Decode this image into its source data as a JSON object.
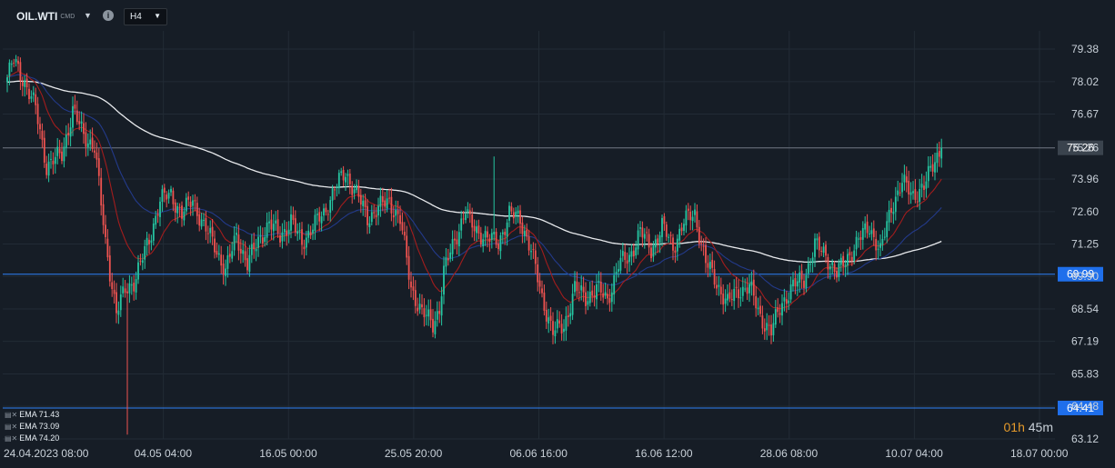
{
  "instrument": {
    "symbol": "OIL.WTI",
    "market": "CMD",
    "info_icon": "info-icon",
    "timeframe": "H4"
  },
  "chart_data": {
    "type": "candlestick",
    "ylim": [
      63.12,
      79.38
    ],
    "y_ticks": [
      "79.38",
      "78.02",
      "76.67",
      "75.26",
      "73.96",
      "72.60",
      "71.25",
      "69.90",
      "68.54",
      "67.19",
      "65.83",
      "64.48",
      "63.12"
    ],
    "x_ticks": [
      "24.04.2023  08:00",
      "04.05  04:00",
      "16.05  00:00",
      "25.05  20:00",
      "06.06  16:00",
      "16.06  12:00",
      "28.06  08:00",
      "10.07  04:00",
      "18.07  00:00"
    ],
    "price_lines": [
      {
        "label": "75.26",
        "value": 75.26,
        "color": "#6e7681",
        "badge": "#3a434d"
      },
      {
        "label": "69.99",
        "value": 69.99,
        "color": "#2f81f7",
        "badge": "#1f6feb"
      },
      {
        "label": "64.41",
        "value": 64.41,
        "color": "#2f81f7",
        "badge": "#1f6feb"
      }
    ],
    "close_anchors": [
      [
        0,
        78.2
      ],
      [
        3,
        78.9
      ],
      [
        8,
        78.0
      ],
      [
        13,
        76.9
      ],
      [
        18,
        74.5
      ],
      [
        25,
        75.0
      ],
      [
        30,
        76.8
      ],
      [
        35,
        75.8
      ],
      [
        40,
        75.3
      ],
      [
        45,
        71.3
      ],
      [
        50,
        68.4
      ],
      [
        54,
        69.3
      ],
      [
        58,
        69.7
      ],
      [
        65,
        71.4
      ],
      [
        70,
        73.1
      ],
      [
        75,
        73.3
      ],
      [
        80,
        72.5
      ],
      [
        85,
        73.1
      ],
      [
        90,
        72.0
      ],
      [
        95,
        71.2
      ],
      [
        100,
        70.1
      ],
      [
        105,
        71.6
      ],
      [
        110,
        70.4
      ],
      [
        115,
        71.4
      ],
      [
        120,
        72.1
      ],
      [
        125,
        71.6
      ],
      [
        130,
        72.2
      ],
      [
        135,
        71.3
      ],
      [
        140,
        72.0
      ],
      [
        145,
        72.5
      ],
      [
        150,
        73.6
      ],
      [
        155,
        74.2
      ],
      [
        160,
        73.4
      ],
      [
        165,
        72.3
      ],
      [
        170,
        72.8
      ],
      [
        175,
        73.0
      ],
      [
        180,
        72.3
      ],
      [
        185,
        69.4
      ],
      [
        190,
        68.4
      ],
      [
        195,
        67.9
      ],
      [
        198,
        68.6
      ],
      [
        200,
        70.1
      ],
      [
        205,
        71.4
      ],
      [
        210,
        72.7
      ],
      [
        212,
        72.1
      ],
      [
        215,
        71.8
      ],
      [
        220,
        71.5
      ],
      [
        225,
        71.3
      ],
      [
        230,
        72.5
      ],
      [
        235,
        72.3
      ],
      [
        240,
        71.0
      ],
      [
        245,
        69.0
      ],
      [
        250,
        67.6
      ],
      [
        255,
        67.8
      ],
      [
        260,
        69.4
      ],
      [
        265,
        69.0
      ],
      [
        270,
        69.4
      ],
      [
        275,
        68.9
      ],
      [
        280,
        70.4
      ],
      [
        285,
        70.7
      ],
      [
        290,
        71.8
      ],
      [
        295,
        71.0
      ],
      [
        300,
        72.0
      ],
      [
        305,
        71.1
      ],
      [
        310,
        72.2
      ],
      [
        315,
        72.5
      ],
      [
        320,
        70.5
      ],
      [
        325,
        69.6
      ],
      [
        330,
        68.8
      ],
      [
        335,
        69.3
      ],
      [
        340,
        69.5
      ],
      [
        345,
        68.2
      ],
      [
        350,
        67.6
      ],
      [
        355,
        68.8
      ],
      [
        360,
        69.5
      ],
      [
        365,
        69.8
      ],
      [
        370,
        71.2
      ],
      [
        375,
        70.8
      ],
      [
        380,
        70.0
      ],
      [
        385,
        70.7
      ],
      [
        390,
        71.4
      ],
      [
        395,
        72.0
      ],
      [
        400,
        70.9
      ],
      [
        405,
        72.8
      ],
      [
        410,
        73.8
      ],
      [
        415,
        73.3
      ],
      [
        420,
        73.6
      ],
      [
        425,
        74.8
      ],
      [
        428,
        75.26
      ]
    ],
    "series": [
      {
        "name": "EMA 71.43",
        "color": "#e8eaed",
        "period": 200
      },
      {
        "name": "EMA 73.09",
        "color": "#233a8a",
        "period": 50
      },
      {
        "name": "EMA 74.20",
        "color": "#a21d1d",
        "period": 20
      }
    ],
    "candle_colors": {
      "up": "#26c6a2",
      "down": "#ef5350"
    }
  },
  "legend_icon": "indicator-settings-icon",
  "countdown": {
    "hours": "01h",
    "minutes": "45m"
  }
}
